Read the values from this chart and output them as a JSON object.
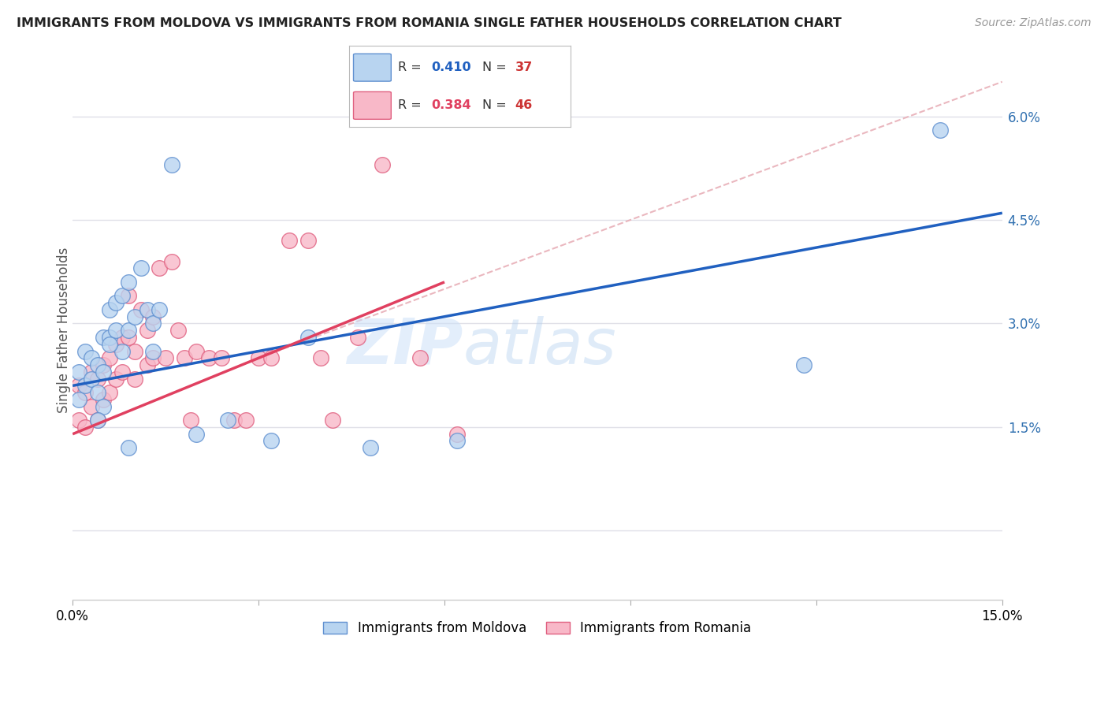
{
  "title": "IMMIGRANTS FROM MOLDOVA VS IMMIGRANTS FROM ROMANIA SINGLE FATHER HOUSEHOLDS CORRELATION CHART",
  "source": "Source: ZipAtlas.com",
  "ylabel": "Single Father Households",
  "yticks": [
    0.0,
    0.015,
    0.03,
    0.045,
    0.06
  ],
  "ytick_labels": [
    "",
    "1.5%",
    "3.0%",
    "4.5%",
    "6.0%"
  ],
  "xlim": [
    0.0,
    0.15
  ],
  "ylim": [
    -0.01,
    0.068
  ],
  "watermark_zip": "ZIP",
  "watermark_atlas": "atlas",
  "moldova_color": "#b8d4f0",
  "romania_color": "#f8b8c8",
  "moldova_edge_color": "#6090d0",
  "romania_edge_color": "#e06080",
  "moldova_line_color": "#2060c0",
  "romania_line_color": "#e04060",
  "dashed_line_color": "#e8b0b8",
  "blue_line_x": [
    0.0,
    0.15
  ],
  "blue_line_y": [
    0.021,
    0.046
  ],
  "pink_line_x": [
    0.0,
    0.06
  ],
  "pink_line_y": [
    0.014,
    0.036
  ],
  "dash_line_x": [
    0.03,
    0.15
  ],
  "dash_line_y": [
    0.025,
    0.065
  ],
  "moldova_x": [
    0.001,
    0.001,
    0.002,
    0.002,
    0.003,
    0.003,
    0.004,
    0.004,
    0.005,
    0.005,
    0.005,
    0.006,
    0.006,
    0.007,
    0.007,
    0.008,
    0.008,
    0.009,
    0.009,
    0.01,
    0.011,
    0.012,
    0.013,
    0.013,
    0.014,
    0.016,
    0.02,
    0.025,
    0.032,
    0.038,
    0.048,
    0.062,
    0.118,
    0.14,
    0.004,
    0.006,
    0.009
  ],
  "moldova_y": [
    0.023,
    0.019,
    0.026,
    0.021,
    0.025,
    0.022,
    0.024,
    0.02,
    0.028,
    0.023,
    0.018,
    0.032,
    0.028,
    0.033,
    0.029,
    0.034,
    0.026,
    0.036,
    0.029,
    0.031,
    0.038,
    0.032,
    0.03,
    0.026,
    0.032,
    0.053,
    0.014,
    0.016,
    0.013,
    0.028,
    0.012,
    0.013,
    0.024,
    0.058,
    0.016,
    0.027,
    0.012
  ],
  "romania_x": [
    0.001,
    0.001,
    0.002,
    0.002,
    0.003,
    0.003,
    0.004,
    0.004,
    0.005,
    0.005,
    0.006,
    0.006,
    0.007,
    0.007,
    0.008,
    0.008,
    0.009,
    0.009,
    0.01,
    0.01,
    0.011,
    0.012,
    0.012,
    0.013,
    0.013,
    0.014,
    0.015,
    0.016,
    0.017,
    0.018,
    0.019,
    0.02,
    0.022,
    0.024,
    0.026,
    0.028,
    0.03,
    0.032,
    0.035,
    0.038,
    0.04,
    0.042,
    0.046,
    0.05,
    0.056,
    0.062
  ],
  "romania_y": [
    0.021,
    0.016,
    0.02,
    0.015,
    0.023,
    0.018,
    0.022,
    0.016,
    0.024,
    0.019,
    0.025,
    0.02,
    0.027,
    0.022,
    0.028,
    0.023,
    0.034,
    0.028,
    0.026,
    0.022,
    0.032,
    0.029,
    0.024,
    0.031,
    0.025,
    0.038,
    0.025,
    0.039,
    0.029,
    0.025,
    0.016,
    0.026,
    0.025,
    0.025,
    0.016,
    0.016,
    0.025,
    0.025,
    0.042,
    0.042,
    0.025,
    0.016,
    0.028,
    0.053,
    0.025,
    0.014
  ]
}
